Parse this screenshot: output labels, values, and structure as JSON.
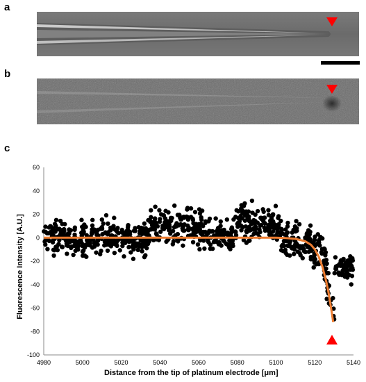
{
  "panels": {
    "a": {
      "letter": "a"
    },
    "b": {
      "letter": "b"
    },
    "c": {
      "letter": "c"
    }
  },
  "colors": {
    "marker": "#ff0000",
    "fit_line": "#ed7d31",
    "points": "#000000"
  },
  "chart_data": {
    "type": "scatter",
    "title": "",
    "xlabel": "Distance from the tip of platinum electrode [μm]",
    "ylabel": "Fluorescence Intensity [A.U.]",
    "xlim": [
      4980,
      5140
    ],
    "ylim": [
      -100,
      60
    ],
    "xticks": [
      4980,
      5000,
      5020,
      5040,
      5060,
      5080,
      5100,
      5120,
      5140
    ],
    "yticks": [
      -100,
      -80,
      -60,
      -40,
      -20,
      0,
      20,
      40,
      60
    ],
    "grid": false,
    "legend": "none",
    "scatter_segments": [
      {
        "x_start": 4980,
        "x_end": 5000,
        "mean": 0,
        "spread": 11
      },
      {
        "x_start": 5000,
        "x_end": 5035,
        "mean": 0,
        "spread": 12
      },
      {
        "x_start": 5035,
        "x_end": 5062,
        "mean": 10,
        "spread": 13
      },
      {
        "x_start": 5062,
        "x_end": 5078,
        "mean": 0,
        "spread": 11
      },
      {
        "x_start": 5078,
        "x_end": 5102,
        "mean": 12,
        "spread": 13
      },
      {
        "x_start": 5102,
        "x_end": 5118,
        "mean": -2,
        "spread": 11
      },
      {
        "x_start": 5118,
        "x_end": 5124,
        "mean": -12,
        "spread": 12
      },
      {
        "x_start": 5124,
        "x_end": 5130,
        "mean": -45,
        "spread": 16
      },
      {
        "x_start": 5130,
        "x_end": 5140,
        "mean": -25,
        "spread": 10
      }
    ],
    "scatter_points_count": 900,
    "fit_curve": [
      [
        4980,
        0
      ],
      [
        5060,
        0
      ],
      [
        5100,
        0
      ],
      [
        5105,
        -0.3
      ],
      [
        5110,
        -1
      ],
      [
        5115,
        -3
      ],
      [
        5118,
        -6
      ],
      [
        5120,
        -10
      ],
      [
        5122,
        -16
      ],
      [
        5124,
        -25
      ],
      [
        5126,
        -38
      ],
      [
        5127,
        -46
      ],
      [
        5128,
        -56
      ],
      [
        5129,
        -66
      ],
      [
        5129.5,
        -72
      ]
    ],
    "marker_x": 5129
  }
}
